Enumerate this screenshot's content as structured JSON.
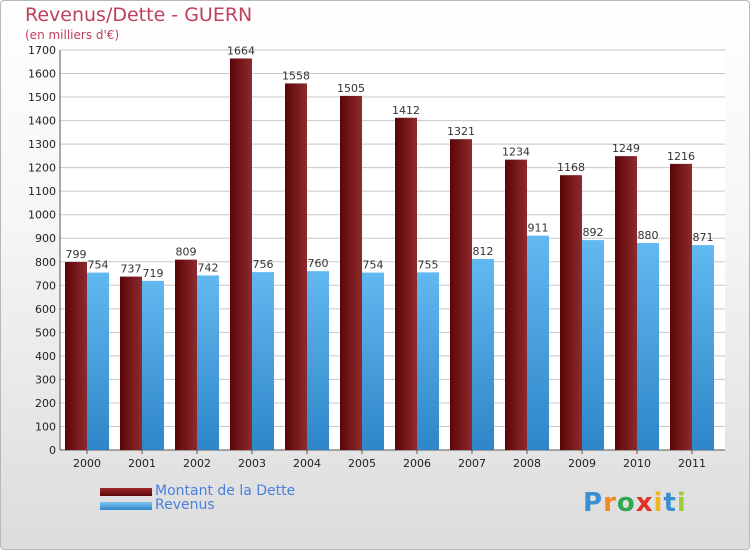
{
  "header": {
    "title": "Revenus/Dette - GUERN",
    "subtitle": "(en milliers d'€)"
  },
  "legend": {
    "debt_label": "Montant de la Dette",
    "revenue_label": "Revenus"
  },
  "logo": {
    "text": "Proxiti",
    "letters": [
      "P",
      "r",
      "o",
      "x",
      "i",
      "t",
      "i"
    ],
    "colors": [
      "#3a8fd0",
      "#f08a1e",
      "#2fa84f",
      "#e0312a",
      "#f0b41e",
      "#3a8fd0",
      "#9acd32"
    ]
  },
  "colors": {
    "debt": "#7a1216",
    "revenue": "#4aa6e6",
    "title": "#c0405b"
  },
  "chart_data": {
    "type": "bar",
    "title": "Revenus/Dette - GUERN",
    "subtitle": "(en milliers d'€)",
    "categories": [
      "2000",
      "2001",
      "2002",
      "2003",
      "2004",
      "2005",
      "2006",
      "2007",
      "2008",
      "2009",
      "2010",
      "2011"
    ],
    "series": [
      {
        "name": "Montant de la Dette",
        "values": [
          799,
          737,
          809,
          1664,
          1558,
          1505,
          1412,
          1321,
          1234,
          1168,
          1249,
          1216
        ]
      },
      {
        "name": "Revenus",
        "values": [
          754,
          719,
          742,
          756,
          760,
          754,
          755,
          812,
          911,
          892,
          880,
          871
        ]
      }
    ],
    "ylim": [
      0,
      1700
    ],
    "yticks": [
      0,
      100,
      200,
      300,
      400,
      500,
      600,
      700,
      800,
      900,
      1000,
      1100,
      1200,
      1300,
      1400,
      1500,
      1600,
      1700
    ],
    "grid": true,
    "legend": "bottom-left"
  }
}
